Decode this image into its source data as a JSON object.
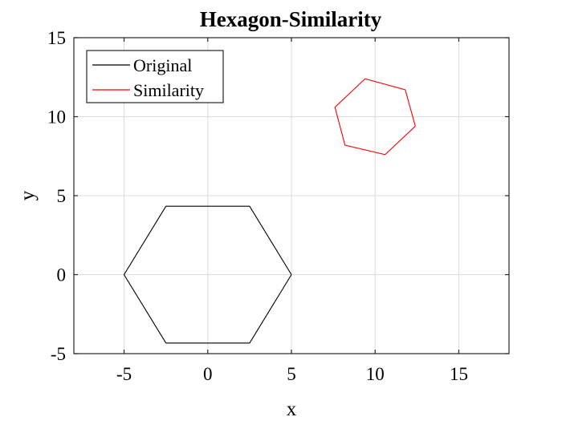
{
  "chart_data": {
    "type": "line",
    "title": "Hexagon-Similarity",
    "xlabel": "x",
    "ylabel": "y",
    "xlim": [
      -8,
      18
    ],
    "ylim": [
      -5,
      15
    ],
    "xticks": [
      -5,
      0,
      5,
      10,
      15
    ],
    "yticks": [
      -5,
      0,
      5,
      10,
      15
    ],
    "xtick_labels": [
      "-5",
      "0",
      "5",
      "10",
      "15"
    ],
    "ytick_labels": [
      "-5",
      "0",
      "5",
      "10",
      "15"
    ],
    "grid": true,
    "legend_location": "top-left",
    "series": [
      {
        "name": "Original",
        "color": "#000000",
        "x": [
          5,
          2.5,
          -2.5,
          -5,
          -2.5,
          2.5,
          5
        ],
        "y": [
          0,
          4.33,
          4.33,
          0,
          -4.33,
          -4.33,
          0
        ]
      },
      {
        "name": "Similarity",
        "color": "#ff0000",
        "x": [
          12.4,
          11.8,
          9.4,
          7.6,
          8.2,
          10.6,
          12.4
        ],
        "y": [
          9.4,
          11.7,
          12.4,
          10.6,
          8.2,
          7.6,
          9.4
        ]
      }
    ]
  }
}
